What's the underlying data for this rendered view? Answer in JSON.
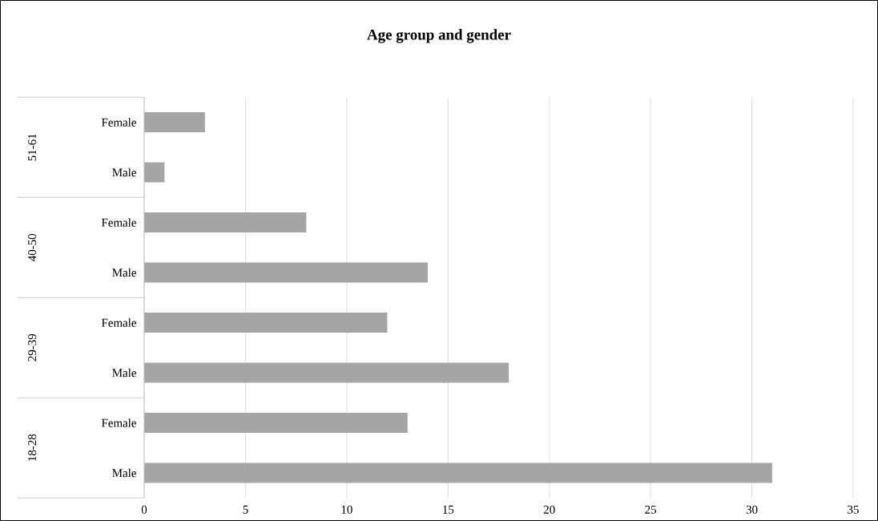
{
  "chart_data": {
    "type": "bar",
    "orientation": "horizontal",
    "title": "Age group and gender",
    "categories": [
      "Female",
      "Male",
      "Female",
      "Male",
      "Female",
      "Male",
      "Female",
      "Male"
    ],
    "values": [
      3,
      1,
      8,
      14,
      12,
      18,
      13,
      31
    ],
    "color": "#a5a5a5",
    "annotations": [
      "51-61",
      "40-50",
      "29-39",
      "18-28"
    ],
    "xlim": [
      0,
      35
    ],
    "xticks": [
      0,
      5,
      10,
      15,
      20,
      25,
      30,
      35
    ],
    "grid": "x"
  }
}
